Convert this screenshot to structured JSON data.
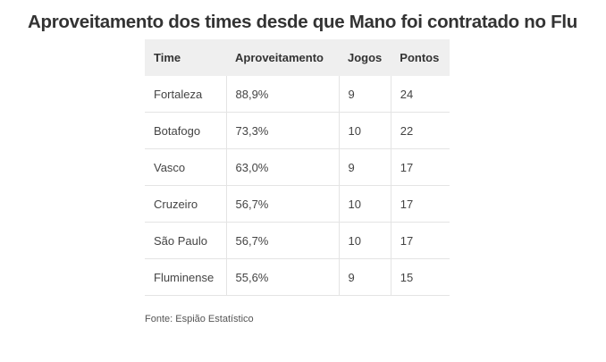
{
  "title": "Aproveitamento dos times desde que Mano foi contratado no Flu",
  "table": {
    "headers": [
      "Time",
      "Aproveitamento",
      "Jogos",
      "Pontos"
    ],
    "rows": [
      [
        "Fortaleza",
        "88,9%",
        "9",
        "24"
      ],
      [
        "Botafogo",
        "73,3%",
        "10",
        "22"
      ],
      [
        "Vasco",
        "63,0%",
        "9",
        "17"
      ],
      [
        "Cruzeiro",
        "56,7%",
        "10",
        "17"
      ],
      [
        "São Paulo",
        "56,7%",
        "10",
        "17"
      ],
      [
        "Fluminense",
        "55,6%",
        "9",
        "15"
      ]
    ]
  },
  "source": "Fonte: Espião Estatístico"
}
